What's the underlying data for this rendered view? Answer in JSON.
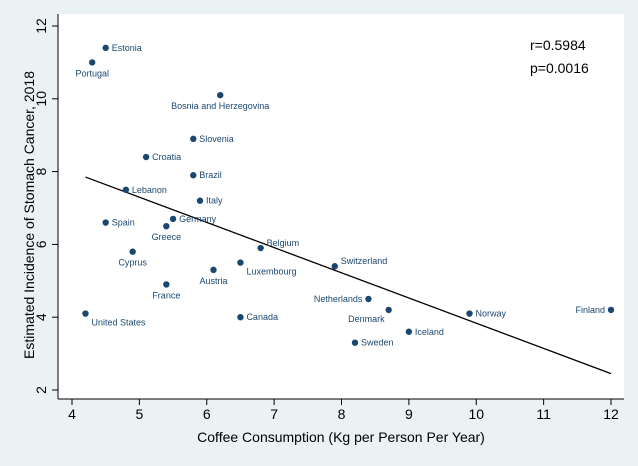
{
  "chart_data": {
    "type": "scatter",
    "xlabel": "Coffee Consumption (Kg per Person Per Year)",
    "ylabel": "Estimated Incidence of Stomach Cancer, 2018",
    "xlim": [
      3.8,
      12.1
    ],
    "ylim": [
      1.6,
      12.4
    ],
    "xticks": [
      4,
      5,
      6,
      7,
      8,
      9,
      10,
      11,
      12
    ],
    "yticks": [
      2,
      4,
      6,
      8,
      10,
      12
    ],
    "grid": false,
    "annotations": [
      "r=0.5984",
      "p=0.0016"
    ],
    "fit_line": {
      "x": [
        4.2,
        12.0
      ],
      "y": [
        7.85,
        2.45
      ]
    },
    "points": [
      {
        "label": "Estonia",
        "x": 4.5,
        "y": 11.4,
        "pos": "right"
      },
      {
        "label": "Portugal",
        "x": 4.3,
        "y": 11.0,
        "pos": "below"
      },
      {
        "label": "Bosnia and Herzegovina",
        "x": 6.2,
        "y": 10.1,
        "pos": "below"
      },
      {
        "label": "Slovenia",
        "x": 5.8,
        "y": 8.9,
        "pos": "right"
      },
      {
        "label": "Croatia",
        "x": 5.1,
        "y": 8.4,
        "pos": "right"
      },
      {
        "label": "Brazil",
        "x": 5.8,
        "y": 7.9,
        "pos": "right"
      },
      {
        "label": "Lebanon",
        "x": 4.8,
        "y": 7.5,
        "pos": "right"
      },
      {
        "label": "Italy",
        "x": 5.9,
        "y": 7.2,
        "pos": "right"
      },
      {
        "label": "Germany",
        "x": 5.5,
        "y": 6.7,
        "pos": "right"
      },
      {
        "label": "Spain",
        "x": 4.5,
        "y": 6.6,
        "pos": "right"
      },
      {
        "label": "Greece",
        "x": 5.4,
        "y": 6.5,
        "pos": "below"
      },
      {
        "label": "Belgium",
        "x": 6.8,
        "y": 5.9,
        "pos": "upright"
      },
      {
        "label": "Cyprus",
        "x": 4.9,
        "y": 5.8,
        "pos": "below"
      },
      {
        "label": "Luxembourg",
        "x": 6.5,
        "y": 5.5,
        "pos": "belowright"
      },
      {
        "label": "Switzerland",
        "x": 7.9,
        "y": 5.4,
        "pos": "upright"
      },
      {
        "label": "Austria",
        "x": 6.1,
        "y": 5.3,
        "pos": "below"
      },
      {
        "label": "France",
        "x": 5.4,
        "y": 4.9,
        "pos": "below"
      },
      {
        "label": "Netherlands",
        "x": 8.4,
        "y": 4.5,
        "pos": "left"
      },
      {
        "label": "Denmark",
        "x": 8.7,
        "y": 4.2,
        "pos": "belowleft"
      },
      {
        "label": "Finland",
        "x": 12.0,
        "y": 4.2,
        "pos": "left"
      },
      {
        "label": "Norway",
        "x": 9.9,
        "y": 4.1,
        "pos": "right"
      },
      {
        "label": "United States",
        "x": 4.2,
        "y": 4.1,
        "pos": "belowright"
      },
      {
        "label": "Canada",
        "x": 6.5,
        "y": 4.0,
        "pos": "right"
      },
      {
        "label": "Iceland",
        "x": 9.0,
        "y": 3.6,
        "pos": "right"
      },
      {
        "label": "Sweden",
        "x": 8.2,
        "y": 3.3,
        "pos": "right"
      }
    ]
  }
}
